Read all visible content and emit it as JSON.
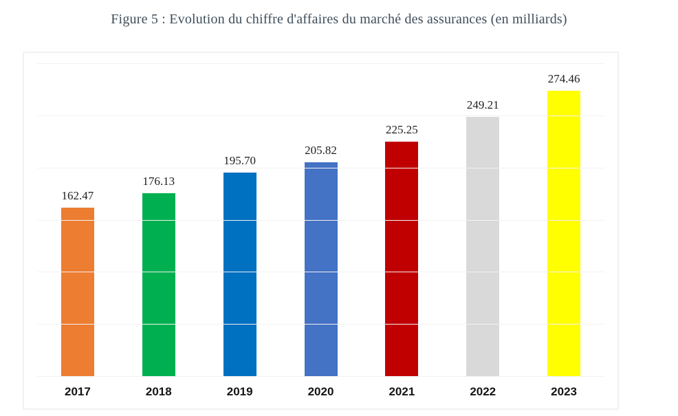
{
  "title": "Figure 5 : Evolution du chiffre d'affaires du marché des assurances (en milliards)",
  "chart_data": {
    "type": "bar",
    "title": "Figure 5 : Evolution du chiffre d'affaires du marché des assurances (en milliards)",
    "categories": [
      "2017",
      "2018",
      "2019",
      "2020",
      "2021",
      "2022",
      "2023"
    ],
    "values": [
      162.47,
      176.13,
      195.7,
      205.82,
      225.25,
      249.21,
      274.46
    ],
    "value_labels": [
      "162.47",
      "176.13",
      "195.70",
      "205.82",
      "225.25",
      "249.21",
      "274.46"
    ],
    "bar_colors": [
      "#ED7D31",
      "#00B050",
      "#0070C0",
      "#4472C4",
      "#C00000",
      "#D9D9D9",
      "#FFFF00"
    ],
    "xlabel": "",
    "ylabel": "",
    "ylim": [
      0,
      300
    ],
    "grid_step": 50,
    "grid": true,
    "legend": false,
    "data_labels": true
  },
  "colors": {
    "title_text": "#3e4e5c",
    "value_label_text": "#1f1f1f",
    "axis_label_text": "#141414",
    "gridline": "#f2f2f2",
    "chart_border": "#f1f1f1",
    "background": "#ffffff"
  }
}
